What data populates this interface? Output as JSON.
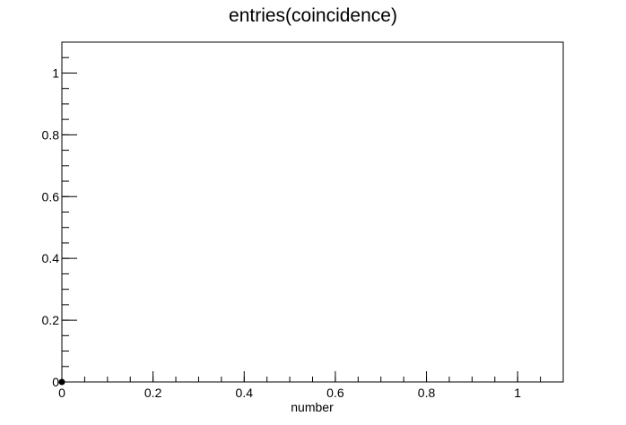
{
  "chart_data": {
    "type": "scatter",
    "title": "entries(coincidence)",
    "xlabel": "number",
    "ylabel": "",
    "xlim": [
      0,
      1.1
    ],
    "ylim": [
      0,
      1.1
    ],
    "x_ticks": [
      0,
      0.2,
      0.4,
      0.6,
      0.8,
      1
    ],
    "x_tick_labels": [
      "0",
      "0.2",
      "0.4",
      "0.6",
      "0.8",
      "1"
    ],
    "y_ticks": [
      0,
      0.2,
      0.4,
      0.6,
      0.8,
      1
    ],
    "y_tick_labels": [
      "0",
      "0.2",
      "0.4",
      "0.6",
      "0.8",
      "1"
    ],
    "grid": false,
    "series": [
      {
        "x": [
          0
        ],
        "y": [
          0
        ]
      }
    ]
  }
}
